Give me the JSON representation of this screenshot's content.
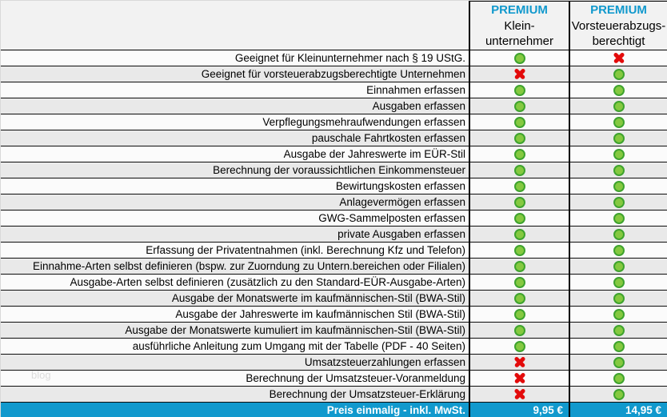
{
  "header": {
    "columns": [
      {
        "brand": "PREMIUM",
        "name_lines": [
          "Klein-",
          "unternehmer"
        ]
      },
      {
        "brand": "PREMIUM",
        "name_lines": [
          "Vorsteuerabzugs-",
          "berechtigt"
        ]
      }
    ]
  },
  "table": {
    "rows": [
      {
        "label": "Geeignet für Kleinunternehmer nach § 19 UStG.",
        "klein": "yes",
        "vorsteuer": "no"
      },
      {
        "label": "Geeignet für vorsteuerabzugsberechtigte Unternehmen",
        "klein": "no",
        "vorsteuer": "yes"
      },
      {
        "label": "Einnahmen erfassen",
        "klein": "yes",
        "vorsteuer": "yes"
      },
      {
        "label": "Ausgaben erfassen",
        "klein": "yes",
        "vorsteuer": "yes"
      },
      {
        "label": "Verpflegungsmehraufwendungen erfassen",
        "klein": "yes",
        "vorsteuer": "yes"
      },
      {
        "label": "pauschale Fahrtkosten erfassen",
        "klein": "yes",
        "vorsteuer": "yes"
      },
      {
        "label": "Ausgabe der Jahreswerte im EÜR-Stil",
        "klein": "yes",
        "vorsteuer": "yes"
      },
      {
        "label": "Berechnung der voraussichtlichen Einkommensteuer",
        "klein": "yes",
        "vorsteuer": "yes"
      },
      {
        "label": "Bewirtungskosten erfassen",
        "klein": "yes",
        "vorsteuer": "yes"
      },
      {
        "label": "Anlagevermögen erfassen",
        "klein": "yes",
        "vorsteuer": "yes"
      },
      {
        "label": "GWG-Sammelposten erfassen",
        "klein": "yes",
        "vorsteuer": "yes"
      },
      {
        "label": "private Ausgaben erfassen",
        "klein": "yes",
        "vorsteuer": "yes"
      },
      {
        "label": "Erfassung der Privatentnahmen (inkl. Berechnung Kfz und Telefon)",
        "klein": "yes",
        "vorsteuer": "yes"
      },
      {
        "label": "Einnahme-Arten selbst definieren (bspw. zur Zuorndung zu Untern.bereichen oder Filialen)",
        "klein": "yes",
        "vorsteuer": "yes"
      },
      {
        "label": "Ausgabe-Arten selbst definieren (zusätzlich zu den Standard-EÜR-Ausgabe-Arten)",
        "klein": "yes",
        "vorsteuer": "yes"
      },
      {
        "label": "Ausgabe der Monatswerte im kaufmännischen-Stil (BWA-Stil)",
        "klein": "yes",
        "vorsteuer": "yes"
      },
      {
        "label": "Ausgabe der Jahreswerte im kaufmännischen Stil (BWA-Stil)",
        "klein": "yes",
        "vorsteuer": "yes"
      },
      {
        "label": "Ausgabe der Monatswerte kumuliert im kaufmännischen-Stil (BWA-Stil)",
        "klein": "yes",
        "vorsteuer": "yes"
      },
      {
        "label": "ausführliche Anleitung zum Umgang mit der Tabelle (PDF - 40 Seiten)",
        "klein": "yes",
        "vorsteuer": "yes"
      },
      {
        "label": "Umsatzsteuerzahlungen erfassen",
        "klein": "no",
        "vorsteuer": "yes"
      },
      {
        "label": "Berechnung der Umsatzsteuer-Voranmeldung",
        "klein": "no",
        "vorsteuer": "yes"
      },
      {
        "label": "Berechnung der Umsatzsteuer-Erklärung",
        "klein": "no",
        "vorsteuer": "yes"
      }
    ]
  },
  "footer": {
    "label": "Preis einmalig - inkl. MwSt.",
    "prices": [
      "9,95 €",
      "14,95 €"
    ]
  },
  "watermark": "blog",
  "icons": {
    "available": "green-dot-icon",
    "unavailable": "red-cross-icon"
  },
  "colors": {
    "accent_blue": "#1199CD",
    "green": "#85C940",
    "green_border": "#3EA32E",
    "red": "#E30B0B"
  }
}
